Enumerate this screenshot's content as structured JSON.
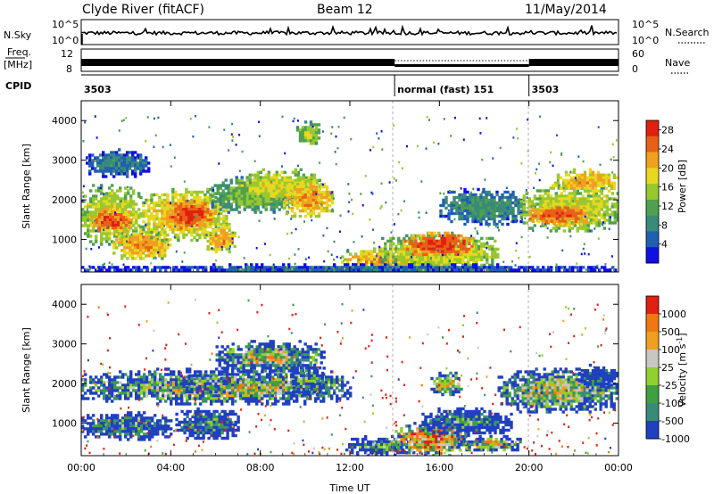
{
  "header": {
    "title": "Clyde River (fitACF)",
    "beam": "Beam 12",
    "date": "11/May/2014"
  },
  "strip_labels": {
    "nsky": "N.Sky",
    "freq_top": "Freq.",
    "freq_unit": "[MHz]",
    "cpid": "CPID",
    "nsearch": "N.Search",
    "nave": "Nave",
    "nsky_ticks": [
      "10^5",
      "10^0"
    ],
    "freq_ticks": [
      "12",
      "8"
    ],
    "nsearch_ticks": [
      "10^5",
      "10^0"
    ],
    "nave_ticks": [
      "60",
      "0"
    ]
  },
  "cpid_segments": [
    {
      "start_hour": 0,
      "end_hour": 14,
      "label": "3503"
    },
    {
      "start_hour": 14,
      "end_hour": 20,
      "label": "normal (fast) 151"
    },
    {
      "start_hour": 20,
      "end_hour": 24,
      "label": "3503"
    }
  ],
  "chart_data": [
    {
      "type": "heatmap",
      "name": "power",
      "ylabel": "Slant Range [km]",
      "xlabel": "Time UT",
      "x_ticks": [
        "00:00",
        "04:00",
        "08:00",
        "12:00",
        "16:00",
        "20:00",
        "00:00"
      ],
      "x_range_hours": [
        0,
        24
      ],
      "y_ticks": [
        "1000",
        "2000",
        "3000",
        "4000"
      ],
      "y_range_km": [
        180,
        4500
      ],
      "colorbar": {
        "label": "Power [dB]",
        "ticks": [
          "4",
          "8",
          "12",
          "16",
          "20",
          "24",
          "28"
        ],
        "range": [
          0,
          30
        ],
        "colors": [
          "#1010e0",
          "#2060b0",
          "#3a8a7a",
          "#50a050",
          "#98c830",
          "#e8d820",
          "#f0a020",
          "#e86018",
          "#e02010"
        ]
      },
      "echo_regions": [
        {
          "t0": 0.0,
          "t1": 2.6,
          "r0": 900,
          "r1": 2400,
          "level": 18
        },
        {
          "t0": 0.4,
          "t1": 2.2,
          "r0": 1200,
          "r1": 1800,
          "level": 26
        },
        {
          "t0": 1.4,
          "t1": 4.0,
          "r0": 500,
          "r1": 1300,
          "level": 22
        },
        {
          "t0": 2.6,
          "t1": 6.6,
          "r0": 1000,
          "r1": 2300,
          "level": 20
        },
        {
          "t0": 3.8,
          "t1": 5.8,
          "r0": 1300,
          "r1": 2000,
          "level": 27
        },
        {
          "t0": 5.6,
          "t1": 6.8,
          "r0": 700,
          "r1": 1400,
          "level": 22
        },
        {
          "t0": 5.8,
          "t1": 9.6,
          "r0": 1700,
          "r1": 2600,
          "level": 14
        },
        {
          "t0": 7.0,
          "t1": 10.6,
          "r0": 2000,
          "r1": 2800,
          "level": 18
        },
        {
          "t0": 9.0,
          "t1": 11.2,
          "r0": 1600,
          "r1": 2500,
          "level": 22
        },
        {
          "t0": 9.6,
          "t1": 10.6,
          "r0": 3400,
          "r1": 4000,
          "level": 16
        },
        {
          "t0": 0.2,
          "t1": 3.0,
          "r0": 2600,
          "r1": 3300,
          "level": 8
        },
        {
          "t0": 11.6,
          "t1": 16.0,
          "r0": 200,
          "r1": 800,
          "level": 22
        },
        {
          "t0": 13.4,
          "t1": 18.6,
          "r0": 200,
          "r1": 1200,
          "level": 18
        },
        {
          "t0": 14.4,
          "t1": 17.4,
          "r0": 600,
          "r1": 1200,
          "level": 27
        },
        {
          "t0": 16.0,
          "t1": 19.8,
          "r0": 1400,
          "r1": 2300,
          "level": 10
        },
        {
          "t0": 19.6,
          "t1": 24.0,
          "r0": 1200,
          "r1": 2400,
          "level": 18
        },
        {
          "t0": 20.0,
          "t1": 22.6,
          "r0": 1400,
          "r1": 1900,
          "level": 26
        },
        {
          "t0": 21.0,
          "t1": 24.0,
          "r0": 2200,
          "r1": 2800,
          "level": 21
        },
        {
          "t0": 0.0,
          "t1": 24.0,
          "r0": 180,
          "r1": 400,
          "level": 6
        }
      ]
    },
    {
      "type": "heatmap",
      "name": "velocity",
      "ylabel": "Slant Range [km]",
      "xlabel": "Time UT",
      "x_ticks": [
        "00:00",
        "04:00",
        "08:00",
        "12:00",
        "16:00",
        "20:00",
        "00:00"
      ],
      "x_range_hours": [
        0,
        24
      ],
      "y_ticks": [
        "1000",
        "2000",
        "3000",
        "4000"
      ],
      "y_range_km": [
        180,
        4500
      ],
      "colorbar": {
        "label": "Velocity [m s^-1]",
        "ticks": [
          "1000",
          "500",
          "100",
          "25",
          "-25",
          "-100",
          "-500",
          "-1000"
        ],
        "colors": [
          "#2040c0",
          "#3a8a7a",
          "#40a040",
          "#90d030",
          "#c8c8c0",
          "#f0a020",
          "#f07810",
          "#e02010"
        ]
      },
      "echo_regions": [
        {
          "t0": 0.0,
          "t1": 12.0,
          "r0": 1500,
          "r1": 2400,
          "level": 3.5
        },
        {
          "t0": 0.0,
          "t1": 4.0,
          "r0": 600,
          "r1": 1300,
          "level": 1.5
        },
        {
          "t0": 4.2,
          "t1": 7.0,
          "r0": 600,
          "r1": 1400,
          "level": 1.3
        },
        {
          "t0": 4.4,
          "t1": 6.6,
          "r0": 1800,
          "r1": 2300,
          "level": 2.5
        },
        {
          "t0": 6.0,
          "t1": 10.8,
          "r0": 2300,
          "r1": 3100,
          "level": 3.7
        },
        {
          "t0": 9.4,
          "t1": 10.8,
          "r0": 1700,
          "r1": 2500,
          "level": 2.2
        },
        {
          "t0": 11.8,
          "t1": 14.8,
          "r0": 200,
          "r1": 700,
          "level": 1.6
        },
        {
          "t0": 14.0,
          "t1": 17.2,
          "r0": 200,
          "r1": 1100,
          "level": 5.5
        },
        {
          "t0": 15.2,
          "t1": 19.2,
          "r0": 700,
          "r1": 1400,
          "level": 1.2
        },
        {
          "t0": 16.8,
          "t1": 19.6,
          "r0": 300,
          "r1": 700,
          "level": 3.7
        },
        {
          "t0": 18.6,
          "t1": 24.0,
          "r0": 1300,
          "r1": 2400,
          "level": 3.6
        },
        {
          "t0": 22.2,
          "t1": 24.0,
          "r0": 1900,
          "r1": 2500,
          "level": 0.5
        },
        {
          "t0": 15.6,
          "t1": 17.0,
          "r0": 1700,
          "r1": 2300,
          "level": 4.8
        }
      ]
    }
  ]
}
